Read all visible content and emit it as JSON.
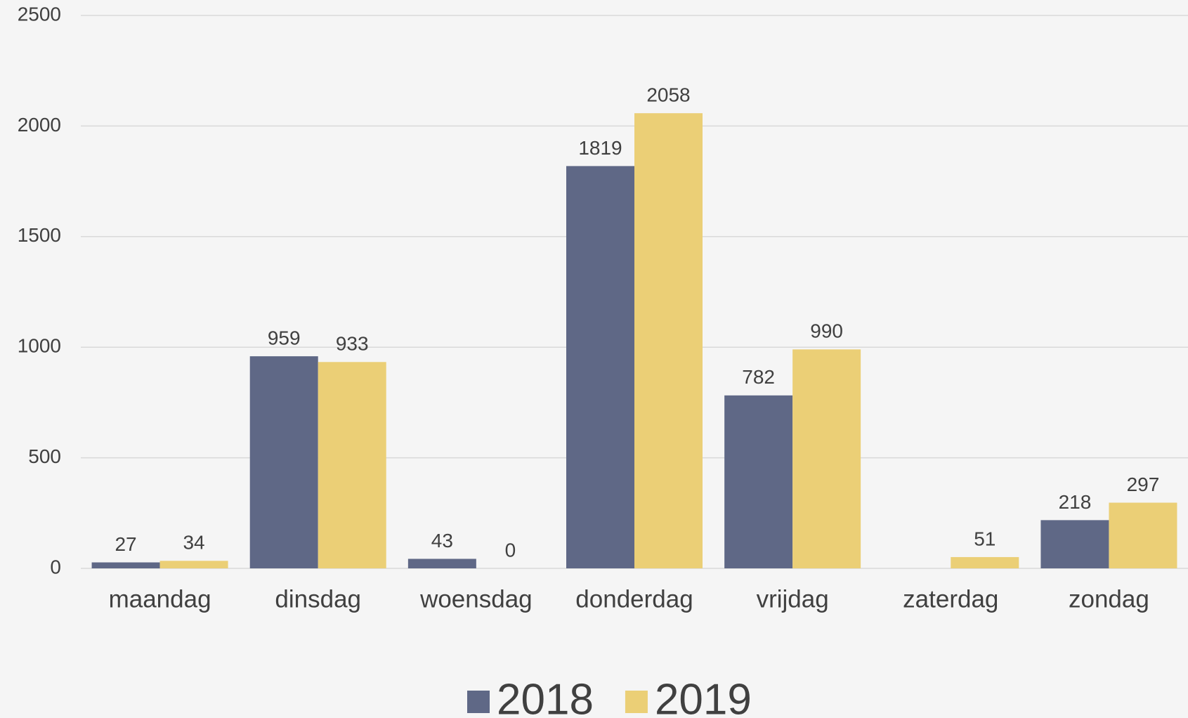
{
  "chart_data": {
    "type": "bar",
    "categories": [
      "maandag",
      "dinsdag",
      "woensdag",
      "donderdag",
      "vrijdag",
      "zaterdag",
      "zondag"
    ],
    "series": [
      {
        "name": "2018",
        "color": "#5f6886",
        "values": [
          27,
          959,
          43,
          1819,
          782,
          null,
          218
        ]
      },
      {
        "name": "2019",
        "color": "#ebcf76",
        "values": [
          34,
          933,
          0,
          2058,
          990,
          51,
          297
        ]
      }
    ],
    "ylim": [
      0,
      2500
    ],
    "yticks": [
      0,
      500,
      1000,
      1500,
      2000,
      2500
    ],
    "grid": true,
    "legend": "bottom"
  }
}
